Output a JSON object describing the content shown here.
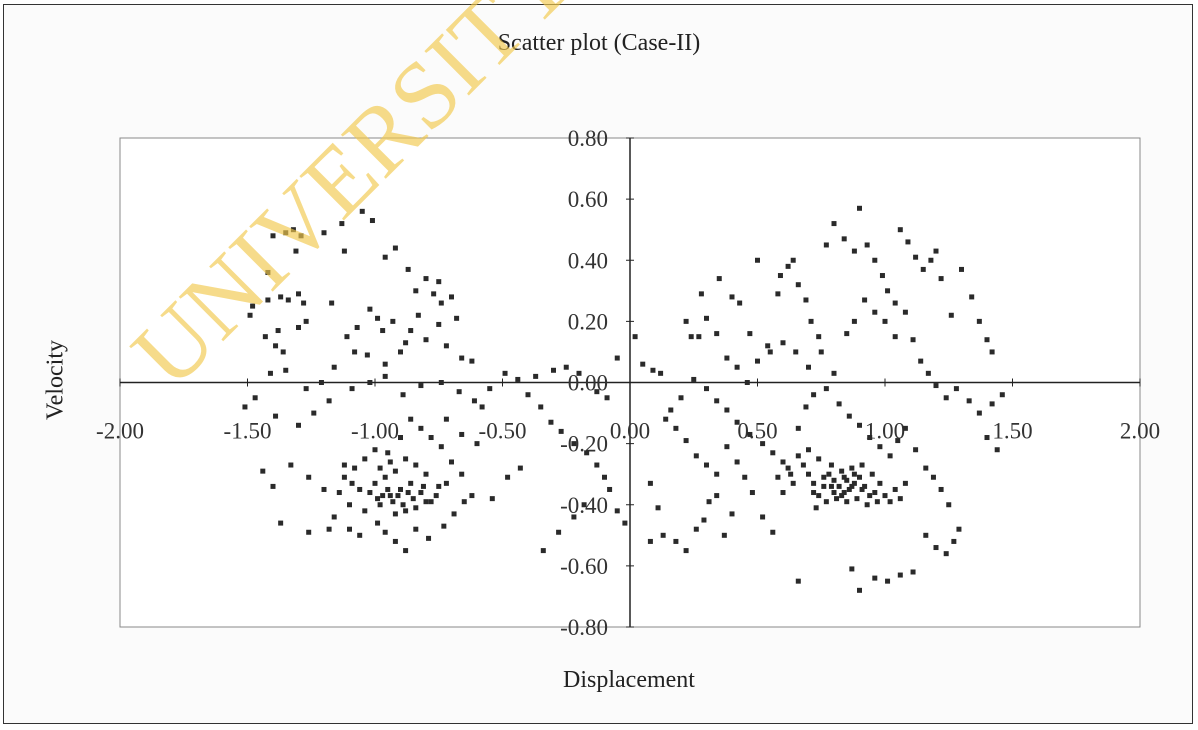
{
  "chart_data": {
    "type": "scatter",
    "title": "Scatter plot (Case-II)",
    "xlabel": "Displacement",
    "ylabel": "Velocity",
    "xlim": [
      -2.0,
      2.0
    ],
    "ylim": [
      -0.8,
      0.8
    ],
    "x_ticks": [
      "-2.00",
      "-1.50",
      "-1.00",
      "-0.50",
      "0.00",
      "0.50",
      "1.00",
      "1.50",
      "2.00"
    ],
    "y_ticks": [
      "0.80",
      "0.60",
      "0.40",
      "0.20",
      "0.00",
      "-0.20",
      "-0.40",
      "-0.60",
      "-0.80"
    ],
    "grid": false,
    "marker_color": "#2a2a2a",
    "points": [
      [
        -1.05,
        0.56
      ],
      [
        -1.01,
        0.53
      ],
      [
        -1.13,
        0.52
      ],
      [
        -1.2,
        0.49
      ],
      [
        -1.29,
        0.48
      ],
      [
        -1.32,
        0.5
      ],
      [
        -1.35,
        0.49
      ],
      [
        -1.4,
        0.48
      ],
      [
        -1.31,
        0.43
      ],
      [
        -1.42,
        0.36
      ],
      [
        -1.48,
        0.25
      ],
      [
        -1.49,
        0.22
      ],
      [
        -1.42,
        0.27
      ],
      [
        -1.37,
        0.28
      ],
      [
        -1.34,
        0.27
      ],
      [
        -1.3,
        0.29
      ],
      [
        -1.28,
        0.26
      ],
      [
        -1.27,
        0.2
      ],
      [
        -1.3,
        0.18
      ],
      [
        -1.38,
        0.17
      ],
      [
        -1.43,
        0.15
      ],
      [
        -1.39,
        0.12
      ],
      [
        -1.36,
        0.1
      ],
      [
        -1.17,
        0.26
      ],
      [
        -1.12,
        0.43
      ],
      [
        -0.96,
        0.41
      ],
      [
        -0.92,
        0.44
      ],
      [
        -0.87,
        0.37
      ],
      [
        -0.84,
        0.3
      ],
      [
        -0.8,
        0.34
      ],
      [
        -0.77,
        0.29
      ],
      [
        -0.75,
        0.33
      ],
      [
        -0.74,
        0.26
      ],
      [
        -0.7,
        0.28
      ],
      [
        -0.68,
        0.21
      ],
      [
        -0.75,
        0.19
      ],
      [
        -0.83,
        0.22
      ],
      [
        -0.86,
        0.17
      ],
      [
        -0.88,
        0.13
      ],
      [
        -0.93,
        0.2
      ],
      [
        -0.97,
        0.17
      ],
      [
        -0.99,
        0.21
      ],
      [
        -1.02,
        0.24
      ],
      [
        -1.07,
        0.18
      ],
      [
        -1.11,
        0.15
      ],
      [
        -1.08,
        0.1
      ],
      [
        -1.03,
        0.09
      ],
      [
        -0.96,
        0.06
      ],
      [
        -0.9,
        0.1
      ],
      [
        -0.8,
        0.14
      ],
      [
        -0.72,
        0.12
      ],
      [
        -0.66,
        0.08
      ],
      [
        -0.62,
        0.07
      ],
      [
        -1.16,
        0.05
      ],
      [
        -1.21,
        0.0
      ],
      [
        -1.27,
        -0.02
      ],
      [
        -1.35,
        0.04
      ],
      [
        -1.41,
        0.03
      ],
      [
        -1.47,
        -0.05
      ],
      [
        -1.51,
        -0.08
      ],
      [
        -1.39,
        -0.11
      ],
      [
        -1.3,
        -0.14
      ],
      [
        -1.24,
        -0.1
      ],
      [
        -1.18,
        -0.06
      ],
      [
        -1.09,
        -0.02
      ],
      [
        -1.02,
        0.0
      ],
      [
        -0.96,
        0.02
      ],
      [
        -0.89,
        -0.04
      ],
      [
        -0.82,
        -0.01
      ],
      [
        -0.74,
        0.0
      ],
      [
        -0.67,
        -0.03
      ],
      [
        -0.61,
        -0.06
      ],
      [
        -0.55,
        -0.02
      ],
      [
        -0.49,
        0.03
      ],
      [
        -0.44,
        0.01
      ],
      [
        -0.37,
        0.02
      ],
      [
        -0.3,
        0.04
      ],
      [
        -0.25,
        0.05
      ],
      [
        -0.2,
        0.03
      ],
      [
        -0.13,
        -0.03
      ],
      [
        -0.09,
        -0.05
      ],
      [
        -0.05,
        0.08
      ],
      [
        0.02,
        0.15
      ],
      [
        0.05,
        0.06
      ],
      [
        0.09,
        0.04
      ],
      [
        0.12,
        0.03
      ],
      [
        -0.4,
        -0.04
      ],
      [
        -0.35,
        -0.08
      ],
      [
        -0.31,
        -0.13
      ],
      [
        -0.27,
        -0.16
      ],
      [
        -0.22,
        -0.2
      ],
      [
        -0.17,
        -0.23
      ],
      [
        -0.13,
        -0.27
      ],
      [
        -0.1,
        -0.31
      ],
      [
        -0.08,
        -0.35
      ],
      [
        -0.05,
        -0.42
      ],
      [
        -0.02,
        -0.46
      ],
      [
        -0.18,
        -0.4
      ],
      [
        -0.22,
        -0.44
      ],
      [
        -0.28,
        -0.49
      ],
      [
        -0.34,
        -0.55
      ],
      [
        -0.43,
        -0.28
      ],
      [
        -0.48,
        -0.31
      ],
      [
        -0.54,
        -0.38
      ],
      [
        -0.6,
        -0.2
      ],
      [
        -0.66,
        -0.17
      ],
      [
        -0.72,
        -0.12
      ],
      [
        -0.58,
        -0.08
      ],
      [
        0.08,
        -0.33
      ],
      [
        0.11,
        -0.41
      ],
      [
        0.13,
        -0.5
      ],
      [
        0.08,
        -0.52
      ],
      [
        0.18,
        -0.52
      ],
      [
        0.22,
        -0.55
      ],
      [
        0.26,
        -0.48
      ],
      [
        0.29,
        -0.45
      ],
      [
        0.31,
        -0.39
      ],
      [
        0.34,
        -0.37
      ],
      [
        0.37,
        -0.5
      ],
      [
        0.4,
        -0.43
      ],
      [
        -1.44,
        -0.29
      ],
      [
        -1.4,
        -0.34
      ],
      [
        -1.33,
        -0.27
      ],
      [
        -1.26,
        -0.31
      ],
      [
        -1.2,
        -0.35
      ],
      [
        -1.16,
        -0.44
      ],
      [
        -1.1,
        -0.48
      ],
      [
        -1.06,
        -0.5
      ],
      [
        -1.18,
        -0.48
      ],
      [
        -1.26,
        -0.49
      ],
      [
        -1.37,
        -0.46
      ],
      [
        -0.88,
        -0.55
      ],
      [
        -0.92,
        -0.52
      ],
      [
        -0.96,
        -0.49
      ],
      [
        -0.99,
        -0.46
      ],
      [
        -0.84,
        -0.48
      ],
      [
        -0.79,
        -0.51
      ],
      [
        -0.73,
        -0.47
      ],
      [
        -0.69,
        -0.43
      ],
      [
        -0.65,
        -0.39
      ],
      [
        -0.62,
        -0.37
      ],
      [
        -0.66,
        -0.3
      ],
      [
        -0.7,
        -0.26
      ],
      [
        -0.74,
        -0.21
      ],
      [
        -0.78,
        -0.18
      ],
      [
        -0.82,
        -0.15
      ],
      [
        -0.86,
        -0.12
      ],
      [
        -0.9,
        -0.18
      ],
      [
        -0.95,
        -0.23
      ],
      [
        -1.0,
        -0.22
      ],
      [
        -1.04,
        -0.25
      ],
      [
        -1.08,
        -0.28
      ],
      [
        -1.12,
        -0.31
      ],
      [
        -1.14,
        -0.36
      ],
      [
        -1.1,
        -0.4
      ],
      [
        -1.04,
        -0.42
      ],
      [
        -0.98,
        -0.4
      ],
      [
        -0.94,
        -0.37
      ],
      [
        -0.9,
        -0.35
      ],
      [
        -0.86,
        -0.33
      ],
      [
        -0.82,
        -0.36
      ],
      [
        -0.78,
        -0.39
      ],
      [
        -0.75,
        -0.34
      ],
      [
        -0.8,
        -0.3
      ],
      [
        -0.84,
        -0.27
      ],
      [
        -0.88,
        -0.25
      ],
      [
        -0.92,
        -0.29
      ],
      [
        -0.96,
        -0.31
      ],
      [
        -1.0,
        -0.33
      ],
      [
        -1.02,
        -0.36
      ],
      [
        -0.97,
        -0.37
      ],
      [
        -0.93,
        -0.39
      ],
      [
        -0.89,
        -0.4
      ],
      [
        -0.85,
        -0.38
      ],
      [
        -0.81,
        -0.34
      ],
      [
        -0.87,
        -0.36
      ],
      [
        -0.91,
        -0.37
      ],
      [
        -0.95,
        -0.35
      ],
      [
        -0.99,
        -0.38
      ],
      [
        -0.84,
        -0.41
      ],
      [
        -0.88,
        -0.42
      ],
      [
        -0.92,
        -0.43
      ],
      [
        -0.8,
        -0.39
      ],
      [
        -0.76,
        -0.37
      ],
      [
        -0.72,
        -0.33
      ],
      [
        -1.06,
        -0.35
      ],
      [
        -1.09,
        -0.33
      ],
      [
        -1.12,
        -0.27
      ],
      [
        -0.98,
        -0.28
      ],
      [
        -0.94,
        -0.26
      ],
      [
        0.28,
        0.29
      ],
      [
        0.3,
        0.21
      ],
      [
        0.27,
        0.15
      ],
      [
        0.35,
        0.34
      ],
      [
        0.4,
        0.28
      ],
      [
        0.43,
        0.26
      ],
      [
        0.47,
        0.16
      ],
      [
        0.5,
        0.4
      ],
      [
        0.54,
        0.12
      ],
      [
        0.58,
        0.29
      ],
      [
        0.59,
        0.35
      ],
      [
        0.62,
        0.38
      ],
      [
        0.64,
        0.4
      ],
      [
        0.66,
        0.32
      ],
      [
        0.69,
        0.27
      ],
      [
        0.71,
        0.2
      ],
      [
        0.74,
        0.15
      ],
      [
        0.77,
        0.45
      ],
      [
        0.8,
        0.52
      ],
      [
        0.84,
        0.47
      ],
      [
        0.88,
        0.43
      ],
      [
        0.9,
        0.57
      ],
      [
        0.93,
        0.45
      ],
      [
        0.96,
        0.4
      ],
      [
        0.99,
        0.35
      ],
      [
        1.01,
        0.3
      ],
      [
        1.04,
        0.26
      ],
      [
        1.06,
        0.5
      ],
      [
        1.09,
        0.46
      ],
      [
        1.12,
        0.41
      ],
      [
        1.15,
        0.37
      ],
      [
        1.18,
        0.4
      ],
      [
        1.2,
        0.43
      ],
      [
        1.22,
        0.34
      ],
      [
        1.26,
        0.22
      ],
      [
        1.3,
        0.37
      ],
      [
        1.34,
        0.28
      ],
      [
        1.37,
        0.2
      ],
      [
        1.4,
        0.14
      ],
      [
        1.42,
        0.1
      ],
      [
        0.22,
        0.2
      ],
      [
        0.24,
        0.15
      ],
      [
        0.34,
        0.16
      ],
      [
        0.38,
        0.08
      ],
      [
        0.42,
        0.05
      ],
      [
        0.46,
        0.0
      ],
      [
        0.5,
        0.07
      ],
      [
        0.55,
        0.1
      ],
      [
        0.6,
        0.13
      ],
      [
        0.65,
        0.1
      ],
      [
        0.7,
        0.05
      ],
      [
        0.75,
        0.1
      ],
      [
        0.8,
        0.03
      ],
      [
        0.85,
        0.16
      ],
      [
        0.88,
        0.2
      ],
      [
        0.92,
        0.27
      ],
      [
        0.96,
        0.23
      ],
      [
        1.0,
        0.2
      ],
      [
        1.04,
        0.15
      ],
      [
        1.08,
        0.23
      ],
      [
        1.11,
        0.14
      ],
      [
        1.14,
        0.07
      ],
      [
        1.17,
        0.03
      ],
      [
        1.2,
        -0.01
      ],
      [
        1.24,
        -0.05
      ],
      [
        1.28,
        -0.02
      ],
      [
        1.33,
        -0.06
      ],
      [
        1.37,
        -0.1
      ],
      [
        1.4,
        -0.18
      ],
      [
        1.44,
        -0.22
      ],
      [
        1.46,
        -0.04
      ],
      [
        1.42,
        -0.07
      ],
      [
        0.25,
        0.01
      ],
      [
        0.3,
        -0.02
      ],
      [
        0.34,
        -0.06
      ],
      [
        0.38,
        -0.09
      ],
      [
        0.42,
        -0.13
      ],
      [
        0.47,
        -0.17
      ],
      [
        0.52,
        -0.2
      ],
      [
        0.56,
        -0.23
      ],
      [
        0.6,
        -0.26
      ],
      [
        0.63,
        -0.3
      ],
      [
        0.66,
        -0.15
      ],
      [
        0.69,
        -0.08
      ],
      [
        0.72,
        -0.04
      ],
      [
        0.77,
        -0.02
      ],
      [
        0.82,
        -0.07
      ],
      [
        0.86,
        -0.11
      ],
      [
        0.9,
        -0.14
      ],
      [
        0.94,
        -0.18
      ],
      [
        0.98,
        -0.21
      ],
      [
        1.02,
        -0.24
      ],
      [
        1.05,
        -0.19
      ],
      [
        1.08,
        -0.15
      ],
      [
        1.12,
        -0.22
      ],
      [
        1.16,
        -0.28
      ],
      [
        1.19,
        -0.31
      ],
      [
        1.22,
        -0.35
      ],
      [
        1.25,
        -0.4
      ],
      [
        1.29,
        -0.48
      ],
      [
        1.27,
        -0.52
      ],
      [
        1.24,
        -0.56
      ],
      [
        1.2,
        -0.54
      ],
      [
        1.16,
        -0.5
      ],
      [
        1.11,
        -0.62
      ],
      [
        1.06,
        -0.63
      ],
      [
        1.01,
        -0.65
      ],
      [
        0.96,
        -0.64
      ],
      [
        0.9,
        -0.68
      ],
      [
        0.87,
        -0.61
      ],
      [
        0.66,
        -0.65
      ],
      [
        0.56,
        -0.49
      ],
      [
        0.52,
        -0.44
      ],
      [
        0.48,
        -0.36
      ],
      [
        0.45,
        -0.31
      ],
      [
        0.42,
        -0.26
      ],
      [
        0.38,
        -0.21
      ],
      [
        0.34,
        -0.3
      ],
      [
        0.3,
        -0.27
      ],
      [
        0.26,
        -0.24
      ],
      [
        0.22,
        -0.19
      ],
      [
        0.18,
        -0.15
      ],
      [
        0.14,
        -0.12
      ],
      [
        0.2,
        -0.05
      ],
      [
        0.16,
        -0.09
      ],
      [
        0.78,
        -0.3
      ],
      [
        0.8,
        -0.32
      ],
      [
        0.82,
        -0.34
      ],
      [
        0.84,
        -0.36
      ],
      [
        0.86,
        -0.35
      ],
      [
        0.88,
        -0.33
      ],
      [
        0.9,
        -0.31
      ],
      [
        0.92,
        -0.34
      ],
      [
        0.94,
        -0.37
      ],
      [
        0.96,
        -0.36
      ],
      [
        0.76,
        -0.34
      ],
      [
        0.74,
        -0.37
      ],
      [
        0.72,
        -0.33
      ],
      [
        0.7,
        -0.3
      ],
      [
        0.68,
        -0.27
      ],
      [
        0.79,
        -0.27
      ],
      [
        0.83,
        -0.29
      ],
      [
        0.87,
        -0.28
      ],
      [
        0.91,
        -0.27
      ],
      [
        0.95,
        -0.3
      ],
      [
        0.98,
        -0.33
      ],
      [
        1.0,
        -0.37
      ],
      [
        1.02,
        -0.39
      ],
      [
        0.85,
        -0.39
      ],
      [
        0.81,
        -0.38
      ],
      [
        0.77,
        -0.39
      ],
      [
        0.73,
        -0.41
      ],
      [
        0.89,
        -0.38
      ],
      [
        0.93,
        -0.4
      ],
      [
        0.97,
        -0.39
      ],
      [
        1.04,
        -0.35
      ],
      [
        1.06,
        -0.38
      ],
      [
        1.08,
        -0.33
      ],
      [
        0.64,
        -0.33
      ],
      [
        0.6,
        -0.36
      ],
      [
        0.58,
        -0.31
      ],
      [
        0.62,
        -0.28
      ],
      [
        0.66,
        -0.24
      ],
      [
        0.7,
        -0.22
      ],
      [
        0.74,
        -0.25
      ],
      [
        0.85,
        -0.32
      ],
      [
        0.8,
        -0.36
      ],
      [
        0.83,
        -0.37
      ],
      [
        0.87,
        -0.34
      ],
      [
        0.91,
        -0.35
      ],
      [
        0.76,
        -0.31
      ],
      [
        0.72,
        -0.36
      ],
      [
        0.88,
        -0.3
      ],
      [
        0.84,
        -0.31
      ],
      [
        0.79,
        -0.34
      ]
    ]
  },
  "watermark": "UNIVERSITY OF IBADAN"
}
